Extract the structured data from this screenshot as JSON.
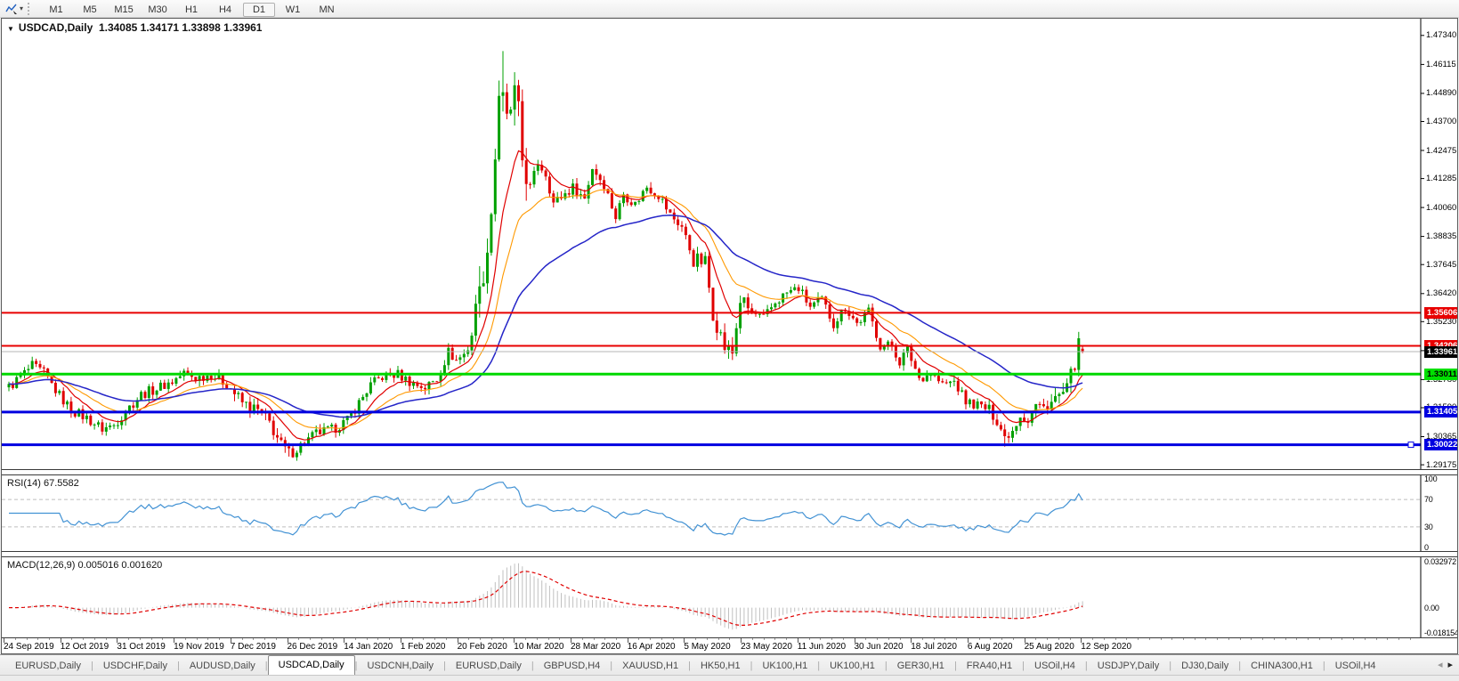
{
  "toolbar": {
    "timeframes": [
      "M1",
      "M5",
      "M15",
      "M30",
      "H1",
      "H4",
      "D1",
      "W1",
      "MN"
    ],
    "active_timeframe": "D1",
    "dropdown_icon": "▾"
  },
  "chart": {
    "title_symbol": "USDCAD,Daily",
    "title_ohlc": "1.34085 1.34171 1.33898 1.33961",
    "collapse_icon": "▼",
    "price_axis_ticks": [
      "1.47340",
      "1.46115",
      "1.44890",
      "1.43700",
      "1.42475",
      "1.41285",
      "1.40060",
      "1.38835",
      "1.37645",
      "1.36420",
      "1.35230",
      "1.34005",
      "1.32780",
      "1.31590",
      "1.30365",
      "1.29175"
    ],
    "levels": [
      {
        "value": "1.35606",
        "price": 1.35606,
        "line_color": "#e80000",
        "badge_bg": "#e80000",
        "badge_fg": "#ffffff",
        "thickness": 2
      },
      {
        "value": "1.34206",
        "price": 1.34206,
        "line_color": "#e80000",
        "badge_bg": "#e80000",
        "badge_fg": "#ffffff",
        "thickness": 2
      },
      {
        "value": "1.33961",
        "price": 1.33961,
        "line_color": "#b4b4b4",
        "badge_bg": "#000000",
        "badge_fg": "#ffffff",
        "thickness": 1,
        "role": "current-price"
      },
      {
        "value": "1.33011",
        "price": 1.33011,
        "line_color": "#00d800",
        "badge_bg": "#00e000",
        "badge_fg": "#000000",
        "thickness": 3
      },
      {
        "value": "1.31405",
        "price": 1.31405,
        "line_color": "#0000e0",
        "badge_bg": "#0000e0",
        "badge_fg": "#ffffff",
        "thickness": 3
      },
      {
        "value": "1.30022",
        "price": 1.30022,
        "line_color": "#0000e0",
        "badge_bg": "#0000e0",
        "badge_fg": "#ffffff",
        "thickness": 3,
        "handle": true
      }
    ]
  },
  "rsi": {
    "label": "RSI(14)",
    "value": "67.5582",
    "period": 14,
    "scale": [
      "100",
      "70",
      "30",
      "0"
    ],
    "upper_level": 70,
    "lower_level": 30,
    "line_color": "#4292d4"
  },
  "macd": {
    "label": "MACD(12,26,9)",
    "value": "0.005016 0.001620",
    "fast": 12,
    "slow": 26,
    "signal": 9,
    "scale_max": "0.032972",
    "scale_zero": "0.00",
    "scale_min": "-0.018154",
    "hist_color": "#c0c0c0",
    "signal_color": "#e00000"
  },
  "tabs": {
    "items": [
      "EURUSD,Daily",
      "USDCHF,Daily",
      "AUDUSD,Daily",
      "USDCAD,Daily",
      "USDCNH,Daily",
      "EURUSD,Daily",
      "GBPUSD,H4",
      "XAUUSD,H1",
      "HK50,H1",
      "UK100,H1",
      "UK100,H1",
      "GER30,H1",
      "FRA40,H1",
      "USOil,H4",
      "USDJPY,Daily",
      "DJ30,Daily",
      "CHINA300,H1",
      "USOil,H4"
    ],
    "active_index": 3,
    "scroll_left_icon": "◂",
    "scroll_right_icon": "▸"
  },
  "chart_data": {
    "type": "candlestick",
    "symbol": "USDCAD",
    "timeframe": "Daily",
    "bar_count": 277,
    "price_view": {
      "max": 1.4805,
      "min": 1.2899
    },
    "bull_color": "#00a000",
    "bear_color": "#e00000",
    "path": [
      [
        0,
        1.3245
      ],
      [
        3,
        1.329
      ],
      [
        6,
        1.3335
      ],
      [
        9,
        1.3305
      ],
      [
        13,
        1.321
      ],
      [
        16,
        1.315
      ],
      [
        20,
        1.3115
      ],
      [
        24,
        1.307
      ],
      [
        27,
        1.3085
      ],
      [
        30,
        1.3145
      ],
      [
        34,
        1.3215
      ],
      [
        38,
        1.324
      ],
      [
        42,
        1.327
      ],
      [
        45,
        1.3305
      ],
      [
        48,
        1.3285
      ],
      [
        52,
        1.33
      ],
      [
        56,
        1.326
      ],
      [
        60,
        1.318
      ],
      [
        64,
        1.3145
      ],
      [
        67,
        1.3095
      ],
      [
        70,
        1.3
      ],
      [
        72,
        1.2965
      ],
      [
        75,
        1.3
      ],
      [
        79,
        1.305
      ],
      [
        83,
        1.3065
      ],
      [
        87,
        1.3105
      ],
      [
        90,
        1.318
      ],
      [
        93,
        1.3255
      ],
      [
        96,
        1.329
      ],
      [
        100,
        1.33
      ],
      [
        104,
        1.326
      ],
      [
        107,
        1.3245
      ],
      [
        110,
        1.328
      ],
      [
        113,
        1.3395
      ],
      [
        115,
        1.336
      ],
      [
        117,
        1.3385
      ],
      [
        119,
        1.348
      ],
      [
        120,
        1.356
      ],
      [
        121,
        1.3735
      ],
      [
        122,
        1.364
      ],
      [
        123,
        1.3875
      ],
      [
        124,
        1.3995
      ],
      [
        125,
        1.4225
      ],
      [
        126,
        1.4495
      ],
      [
        127,
        1.4445
      ],
      [
        128,
        1.436
      ],
      [
        129,
        1.4425
      ],
      [
        130,
        1.448
      ],
      [
        131,
        1.439
      ],
      [
        132,
        1.421
      ],
      [
        134,
        1.409
      ],
      [
        136,
        1.4195
      ],
      [
        138,
        1.415
      ],
      [
        140,
        1.4025
      ],
      [
        143,
        1.4065
      ],
      [
        145,
        1.409
      ],
      [
        148,
        1.4045
      ],
      [
        150,
        1.4175
      ],
      [
        153,
        1.4105
      ],
      [
        156,
        1.3965
      ],
      [
        158,
        1.4065
      ],
      [
        161,
        1.402
      ],
      [
        164,
        1.4095
      ],
      [
        167,
        1.406
      ],
      [
        170,
        1.3975
      ],
      [
        173,
        1.3925
      ],
      [
        176,
        1.3785
      ],
      [
        179,
        1.3775
      ],
      [
        181,
        1.356
      ],
      [
        184,
        1.3415
      ],
      [
        186,
        1.339
      ],
      [
        188,
        1.3615
      ],
      [
        191,
        1.356
      ],
      [
        194,
        1.3535
      ],
      [
        197,
        1.3605
      ],
      [
        200,
        1.3645
      ],
      [
        203,
        1.3665
      ],
      [
        206,
        1.3585
      ],
      [
        209,
        1.3615
      ],
      [
        212,
        1.3515
      ],
      [
        215,
        1.3585
      ],
      [
        218,
        1.3515
      ],
      [
        221,
        1.3565
      ],
      [
        224,
        1.3425
      ],
      [
        227,
        1.342
      ],
      [
        229,
        1.3355
      ],
      [
        231,
        1.3405
      ],
      [
        234,
        1.3285
      ],
      [
        237,
        1.3305
      ],
      [
        240,
        1.3255
      ],
      [
        243,
        1.327
      ],
      [
        246,
        1.3185
      ],
      [
        249,
        1.317
      ],
      [
        252,
        1.315
      ],
      [
        254,
        1.3105
      ],
      [
        256,
        1.3035
      ],
      [
        258,
        1.3065
      ],
      [
        260,
        1.313
      ],
      [
        262,
        1.3105
      ],
      [
        264,
        1.317
      ],
      [
        266,
        1.316
      ],
      [
        268,
        1.3185
      ],
      [
        270,
        1.3205
      ],
      [
        272,
        1.323
      ],
      [
        273,
        1.329
      ],
      [
        274,
        1.3355
      ],
      [
        275,
        1.3415
      ],
      [
        276,
        1.3396
      ]
    ],
    "overrides": [
      {
        "i": 276,
        "o": 1.34085,
        "h": 1.34171,
        "l": 1.33898,
        "c": 1.33961
      },
      {
        "i": 127,
        "h": 1.4668
      },
      {
        "i": 121,
        "h": 1.3758
      },
      {
        "i": 256,
        "l": 1.2994
      },
      {
        "i": 72,
        "l": 1.2952
      }
    ],
    "vol_zones": [
      {
        "from": 118,
        "to": 133,
        "mult": 3.0
      },
      {
        "from": 58,
        "to": 74,
        "mult": 1.25
      },
      {
        "from": 176,
        "to": 190,
        "mult": 1.6
      },
      {
        "from": 268,
        "to": 276,
        "mult": 1.7
      }
    ],
    "moving_averages": [
      {
        "period": 10,
        "type": "ema",
        "color": "#e00000",
        "width": 1.2
      },
      {
        "period": 21,
        "type": "ema",
        "color": "#ff9900",
        "width": 1.1
      },
      {
        "period": 48,
        "type": "ema",
        "color": "#2525c8",
        "width": 1.5
      }
    ],
    "x_labels": [
      "24 Sep 2019",
      "12 Oct 2019",
      "31 Oct 2019",
      "19 Nov 2019",
      "7 Dec 2019",
      "26 Dec 2019",
      "14 Jan 2020",
      "1 Feb 2020",
      "20 Feb 2020",
      "10 Mar 2020",
      "28 Mar 2020",
      "16 Apr 2020",
      "5 May 2020",
      "23 May 2020",
      "11 Jun 2020",
      "30 Jun 2020",
      "18 Jul 2020",
      "6 Aug 2020",
      "25 Aug 2020",
      "12 Sep 2020"
    ]
  }
}
